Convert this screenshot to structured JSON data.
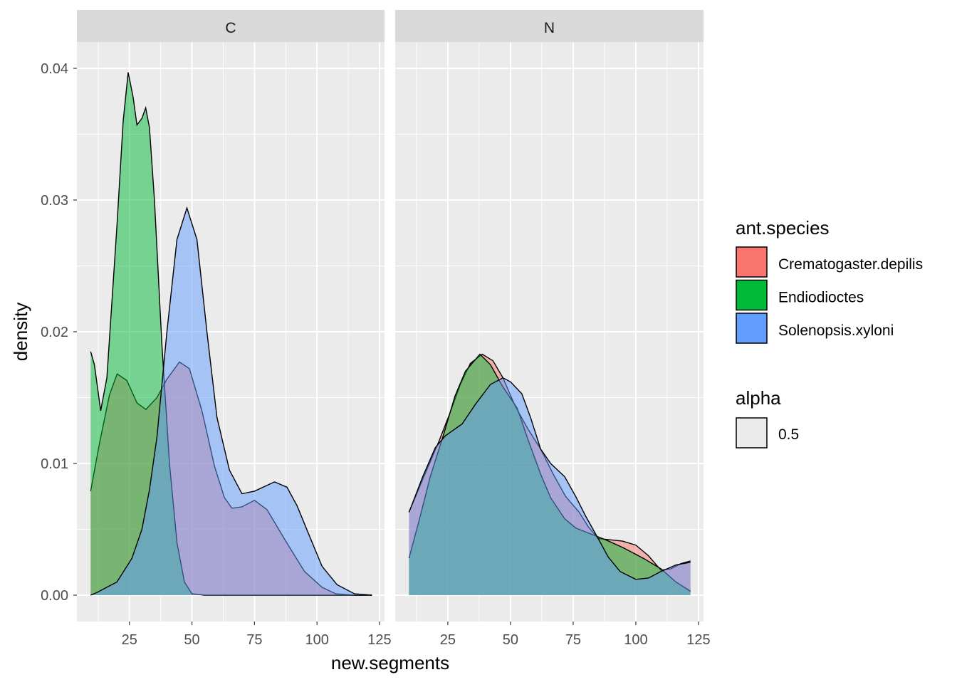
{
  "chart_data": {
    "type": "area",
    "subtype": "density",
    "xlabel": "new.segments",
    "ylabel": "density",
    "xlim": [
      4,
      127
    ],
    "ylim": [
      -0.002,
      0.042
    ],
    "x_ticks": [
      25,
      50,
      75,
      100,
      125
    ],
    "y_ticks": [
      0.0,
      0.01,
      0.02,
      0.03,
      0.04
    ],
    "y_tick_labels": [
      "0.00",
      "0.01",
      "0.02",
      "0.03",
      "0.04"
    ],
    "grid": true,
    "legend_position": "right",
    "legend": {
      "title": "ant.species",
      "entries": [
        {
          "name": "Crematogaster.depilis",
          "color": "#F8766D"
        },
        {
          "name": "Endiodioctes",
          "color": "#00BA38"
        },
        {
          "name": "Solenopsis.xyloni",
          "color": "#619CFF"
        }
      ],
      "alpha_title": "alpha",
      "alpha_value": "0.5"
    },
    "fill_alpha": 0.5,
    "panels": [
      {
        "strip": "C",
        "series": [
          {
            "name": "Crematogaster.depilis",
            "points": [
              [
                9.5,
                0.0079
              ],
              [
                13,
                0.0115
              ],
              [
                17,
                0.0152
              ],
              [
                20.1,
                0.0168
              ],
              [
                24,
                0.0163
              ],
              [
                28,
                0.0146
              ],
              [
                31.6,
                0.0141
              ],
              [
                36,
                0.015
              ],
              [
                40,
                0.0164
              ],
              [
                45,
                0.0177
              ],
              [
                49,
                0.0172
              ],
              [
                54,
                0.014
              ],
              [
                59,
                0.0098
              ],
              [
                63,
                0.0074
              ],
              [
                66,
                0.0066
              ],
              [
                70,
                0.0067
              ],
              [
                75,
                0.0072
              ],
              [
                80,
                0.0065
              ],
              [
                87.5,
                0.0041
              ],
              [
                95,
                0.0018
              ],
              [
                102,
                0.0006
              ],
              [
                107.5,
                0.0001
              ],
              [
                115,
                0.0
              ],
              [
                122,
                0.0
              ]
            ]
          },
          {
            "name": "Endiodioctes",
            "points": [
              [
                9.5,
                0.0185
              ],
              [
                11,
                0.0175
              ],
              [
                13.5,
                0.014
              ],
              [
                16,
                0.0165
              ],
              [
                20,
                0.028
              ],
              [
                22.5,
                0.036
              ],
              [
                24.5,
                0.0397
              ],
              [
                26.5,
                0.0378
              ],
              [
                28,
                0.0357
              ],
              [
                30,
                0.0362
              ],
              [
                31.5,
                0.037
              ],
              [
                33,
                0.0355
              ],
              [
                35,
                0.03
              ],
              [
                38,
                0.019
              ],
              [
                41,
                0.01
              ],
              [
                44,
                0.004
              ],
              [
                47,
                0.001
              ],
              [
                50,
                0.0001
              ],
              [
                55,
                0.0
              ],
              [
                122,
                0.0
              ]
            ]
          },
          {
            "name": "Solenopsis.xyloni",
            "points": [
              [
                9.5,
                0.0
              ],
              [
                12,
                0.0002
              ],
              [
                20,
                0.001
              ],
              [
                26,
                0.0028
              ],
              [
                30,
                0.005
              ],
              [
                33,
                0.008
              ],
              [
                36,
                0.012
              ],
              [
                40,
                0.02
              ],
              [
                44,
                0.027
              ],
              [
                48,
                0.0294
              ],
              [
                52,
                0.027
              ],
              [
                56,
                0.02
              ],
              [
                60,
                0.0135
              ],
              [
                65,
                0.0095
              ],
              [
                70,
                0.0077
              ],
              [
                75,
                0.0079
              ],
              [
                83,
                0.0086
              ],
              [
                88,
                0.0082
              ],
              [
                92,
                0.0068
              ],
              [
                97,
                0.0045
              ],
              [
                102,
                0.0022
              ],
              [
                108,
                0.0008
              ],
              [
                115,
                0.0001
              ],
              [
                122,
                0.0
              ]
            ]
          }
        ]
      },
      {
        "strip": "N",
        "series": [
          {
            "name": "Crematogaster.depilis",
            "points": [
              [
                9.5,
                0.0063
              ],
              [
                15,
                0.0088
              ],
              [
                21.5,
                0.0117
              ],
              [
                25.8,
                0.0138
              ],
              [
                30,
                0.016
              ],
              [
                34,
                0.0176
              ],
              [
                38.7,
                0.0183
              ],
              [
                43,
                0.0178
              ],
              [
                47,
                0.0165
              ],
              [
                52,
                0.0143
              ],
              [
                57,
                0.0126
              ],
              [
                62,
                0.0111
              ],
              [
                67,
                0.0092
              ],
              [
                72,
                0.0075
              ],
              [
                77.4,
                0.0063
              ],
              [
                81,
                0.0052
              ],
              [
                85,
                0.0043
              ],
              [
                90,
                0.0042
              ],
              [
                94.7,
                0.0041
              ],
              [
                100,
                0.0038
              ],
              [
                105,
                0.003
              ],
              [
                110,
                0.0019
              ],
              [
                114,
                0.002
              ],
              [
                118,
                0.0024
              ],
              [
                121.8,
                0.0026
              ]
            ]
          },
          {
            "name": "Endiodioctes",
            "points": [
              [
                9.5,
                0.0028
              ],
              [
                14,
                0.006
              ],
              [
                18,
                0.009
              ],
              [
                23,
                0.012
              ],
              [
                27.8,
                0.0151
              ],
              [
                32,
                0.017
              ],
              [
                37.8,
                0.0183
              ],
              [
                42,
                0.0175
              ],
              [
                47,
                0.0158
              ],
              [
                52.7,
                0.0142
              ],
              [
                57,
                0.0118
              ],
              [
                62,
                0.0092
              ],
              [
                66,
                0.0074
              ],
              [
                71.6,
                0.0058
              ],
              [
                76,
                0.0051
              ],
              [
                81.3,
                0.0047
              ],
              [
                88,
                0.0042
              ],
              [
                95,
                0.0036
              ],
              [
                103,
                0.0028
              ],
              [
                110,
                0.002
              ],
              [
                116,
                0.001
              ],
              [
                121.8,
                0.0003
              ]
            ]
          },
          {
            "name": "Solenopsis.xyloni",
            "points": [
              [
                9.5,
                0.0063
              ],
              [
                15,
                0.009
              ],
              [
                20,
                0.0112
              ],
              [
                24,
                0.0121
              ],
              [
                30.7,
                0.013
              ],
              [
                36,
                0.0145
              ],
              [
                42,
                0.016
              ],
              [
                47,
                0.0165
              ],
              [
                50,
                0.0162
              ],
              [
                54.5,
                0.0153
              ],
              [
                58,
                0.0135
              ],
              [
                62,
                0.0111
              ],
              [
                66,
                0.01
              ],
              [
                71.6,
                0.009
              ],
              [
                76,
                0.0075
              ],
              [
                80,
                0.006
              ],
              [
                85,
                0.0043
              ],
              [
                89,
                0.0029
              ],
              [
                93.7,
                0.0018
              ],
              [
                100,
                0.0012
              ],
              [
                105,
                0.0013
              ],
              [
                110,
                0.0018
              ],
              [
                116,
                0.0023
              ],
              [
                121.8,
                0.0025
              ]
            ]
          }
        ]
      }
    ]
  }
}
